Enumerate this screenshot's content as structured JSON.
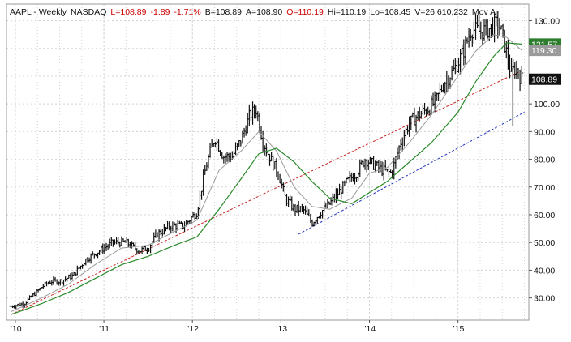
{
  "header": {
    "symbol": "AAPL",
    "sep1": " - ",
    "period": "Weekly",
    "exchange": "NASDAQ",
    "last": "L=108.89",
    "change": "-1.89",
    "change_pct": "-1.71%",
    "bid": "B=108.89",
    "ask": "A=108.90",
    "open": "O=110.19",
    "high": "Hi=110.19",
    "low": "Lo=108.45",
    "volume": "V=26,610,232",
    "ma_label": "Mov A"
  },
  "price_tags": [
    {
      "label": "121.57",
      "value": 121.57,
      "bg": "#2e7d2e",
      "fg": "#ffffff"
    },
    {
      "label": "119.30",
      "value": 119.3,
      "bg": "#9a9a9a",
      "fg": "#ffffff"
    },
    {
      "label": "108.89",
      "value": 108.89,
      "bg": "#111111",
      "fg": "#ffffff"
    }
  ],
  "colors": {
    "price_bars": "#111111",
    "ma_fast": "#9a9a9a",
    "ma_slow": "#2a8a2a",
    "trend_red": "#cc2222",
    "trend_blue": "#2233bb",
    "grid": "#d4d4d4",
    "axis_text": "#111111"
  },
  "chart_data": {
    "type": "ohlc",
    "title": "AAPL - Weekly NASDAQ",
    "xlabel": "",
    "ylabel": "",
    "ylim": [
      22,
      136
    ],
    "xlim": [
      2009.9,
      2015.8
    ],
    "y_ticks": [
      {
        "value": 30,
        "label": "30.00"
      },
      {
        "value": 40,
        "label": "40.00"
      },
      {
        "value": 50,
        "label": "50.00"
      },
      {
        "value": 60,
        "label": "60.00"
      },
      {
        "value": 70,
        "label": "70.00"
      },
      {
        "value": 80,
        "label": "80.00"
      },
      {
        "value": 90,
        "label": "90.00"
      },
      {
        "value": 100,
        "label": "100.00"
      },
      {
        "value": 110,
        "label": "110.00"
      },
      {
        "value": 120,
        "label": "120.00"
      },
      {
        "value": 130,
        "label": "130.00"
      }
    ],
    "x_ticks": [
      {
        "value": 2010,
        "label": "'10"
      },
      {
        "value": 2011,
        "label": "'11"
      },
      {
        "value": 2012,
        "label": "'12"
      },
      {
        "value": 2013,
        "label": "'13"
      },
      {
        "value": 2014,
        "label": "'14"
      },
      {
        "value": 2015,
        "label": "'15"
      }
    ],
    "grid": true,
    "close_path": [
      [
        2009.95,
        27
      ],
      [
        2010.1,
        28
      ],
      [
        2010.3,
        34
      ],
      [
        2010.4,
        36
      ],
      [
        2010.5,
        36
      ],
      [
        2010.65,
        38
      ],
      [
        2010.8,
        44
      ],
      [
        2011.0,
        48
      ],
      [
        2011.1,
        50
      ],
      [
        2011.25,
        50
      ],
      [
        2011.4,
        47
      ],
      [
        2011.5,
        48
      ],
      [
        2011.6,
        53
      ],
      [
        2011.75,
        56
      ],
      [
        2011.9,
        56
      ],
      [
        2012.05,
        61
      ],
      [
        2012.15,
        77
      ],
      [
        2012.25,
        88
      ],
      [
        2012.35,
        81
      ],
      [
        2012.45,
        81
      ],
      [
        2012.55,
        87
      ],
      [
        2012.65,
        96
      ],
      [
        2012.72,
        98
      ],
      [
        2012.8,
        86
      ],
      [
        2012.9,
        79
      ],
      [
        2012.97,
        75
      ],
      [
        2013.05,
        66
      ],
      [
        2013.15,
        62
      ],
      [
        2013.25,
        62
      ],
      [
        2013.35,
        57
      ],
      [
        2013.45,
        61
      ],
      [
        2013.55,
        64
      ],
      [
        2013.65,
        68
      ],
      [
        2013.75,
        72
      ],
      [
        2013.85,
        75
      ],
      [
        2013.95,
        80
      ],
      [
        2014.05,
        78
      ],
      [
        2014.15,
        76
      ],
      [
        2014.25,
        75
      ],
      [
        2014.35,
        86
      ],
      [
        2014.45,
        93
      ],
      [
        2014.55,
        96
      ],
      [
        2014.65,
        98
      ],
      [
        2014.75,
        101
      ],
      [
        2014.85,
        108
      ],
      [
        2014.95,
        112
      ],
      [
        2015.05,
        118
      ],
      [
        2015.15,
        127
      ],
      [
        2015.25,
        126
      ],
      [
        2015.35,
        127
      ],
      [
        2015.45,
        129
      ],
      [
        2015.5,
        125
      ],
      [
        2015.55,
        118
      ],
      [
        2015.6,
        111
      ],
      [
        2015.65,
        113
      ],
      [
        2015.72,
        108.89
      ]
    ],
    "series": [
      {
        "type": "sma_fast",
        "values": [
          [
            2009.95,
            25
          ],
          [
            2010.3,
            30
          ],
          [
            2010.6,
            35
          ],
          [
            2010.9,
            42
          ],
          [
            2011.2,
            48
          ],
          [
            2011.5,
            49
          ],
          [
            2011.8,
            54
          ],
          [
            2012.05,
            58
          ],
          [
            2012.3,
            76
          ],
          [
            2012.55,
            83
          ],
          [
            2012.75,
            90
          ],
          [
            2012.95,
            83
          ],
          [
            2013.15,
            70
          ],
          [
            2013.35,
            63
          ],
          [
            2013.55,
            62
          ],
          [
            2013.8,
            66
          ],
          [
            2014.0,
            75
          ],
          [
            2014.2,
            77
          ],
          [
            2014.45,
            86
          ],
          [
            2014.7,
            96
          ],
          [
            2015.0,
            110
          ],
          [
            2015.2,
            119
          ],
          [
            2015.4,
            125
          ],
          [
            2015.55,
            124
          ],
          [
            2015.72,
            119.3
          ]
        ]
      },
      {
        "type": "sma_slow",
        "values": [
          [
            2009.95,
            24
          ],
          [
            2010.3,
            28
          ],
          [
            2010.6,
            32
          ],
          [
            2010.9,
            37
          ],
          [
            2011.2,
            42
          ],
          [
            2011.5,
            45
          ],
          [
            2011.8,
            49
          ],
          [
            2012.05,
            52
          ],
          [
            2012.3,
            62
          ],
          [
            2012.55,
            73
          ],
          [
            2012.75,
            82
          ],
          [
            2012.95,
            84
          ],
          [
            2013.15,
            79
          ],
          [
            2013.35,
            72
          ],
          [
            2013.55,
            66
          ],
          [
            2013.8,
            64
          ],
          [
            2014.0,
            68
          ],
          [
            2014.2,
            72
          ],
          [
            2014.45,
            79
          ],
          [
            2014.7,
            86
          ],
          [
            2015.0,
            97
          ],
          [
            2015.2,
            108
          ],
          [
            2015.4,
            117
          ],
          [
            2015.55,
            122
          ],
          [
            2015.72,
            121.57
          ]
        ]
      }
    ],
    "trend_lines": [
      {
        "name": "red-trendline",
        "from": [
          2009.95,
          24
        ],
        "to": [
          2015.72,
          112
        ]
      },
      {
        "name": "blue-trendline",
        "from": [
          2013.2,
          53
        ],
        "to": [
          2015.75,
          97
        ]
      }
    ],
    "spike": {
      "x": 2015.62,
      "low": 92,
      "high": 113
    }
  }
}
